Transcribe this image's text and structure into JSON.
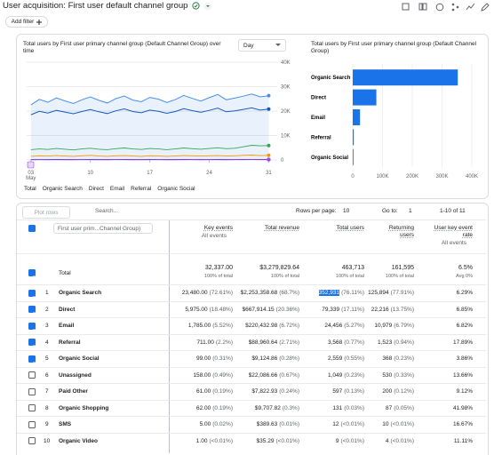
{
  "header": {
    "title": "User acquisition: First user default channel group",
    "add_filter": "Add filter"
  },
  "line_chart": {
    "type": "line",
    "title": "Total users by First user primary channel group (Default Channel Group) over time",
    "period": "Day",
    "x": [
      3,
      4,
      5,
      6,
      7,
      8,
      9,
      10,
      11,
      12,
      13,
      14,
      15,
      16,
      17,
      18,
      19,
      20,
      21,
      22,
      23,
      24,
      25,
      26,
      27,
      28,
      29,
      30,
      31
    ],
    "x_month": "May",
    "xlim": [
      2.5,
      32
    ],
    "xticks": [
      {
        "value": 3,
        "label": "03"
      },
      10,
      17,
      24,
      31
    ],
    "ylim": [
      0,
      40000
    ],
    "yticks": [
      0,
      {
        "value": 10000,
        "label": "10K"
      },
      {
        "value": 20000,
        "label": "20K"
      },
      {
        "value": 30000,
        "label": "30K"
      },
      {
        "value": 40000,
        "label": "40K"
      }
    ],
    "grid": true,
    "series": [
      {
        "name": "Total",
        "color": "#4a8fe7",
        "marker": "diamond",
        "values": [
          22500,
          24800,
          23600,
          25400,
          24200,
          23100,
          24600,
          25800,
          24400,
          23300,
          25100,
          26200,
          24500,
          23800,
          25600,
          24900,
          23500,
          24700,
          26400,
          25200,
          24100,
          25500,
          26800,
          24600,
          25300,
          26100,
          27000,
          25800,
          26300
        ]
      },
      {
        "name": "Organic Search",
        "color": "#1a5bb8",
        "marker": "circle",
        "values": [
          18500,
          19900,
          19200,
          20300,
          19600,
          18900,
          19800,
          20600,
          19700,
          19000,
          20100,
          20900,
          19800,
          19300,
          20400,
          19900,
          19100,
          19800,
          21000,
          20200,
          19500,
          20300,
          21200,
          19700,
          20100,
          20700,
          21300,
          20400,
          20800
        ]
      },
      {
        "name": "Direct",
        "color": "#34a853",
        "marker": "square",
        "values": [
          4200,
          4500,
          4300,
          4700,
          4400,
          4100,
          4500,
          4800,
          4400,
          4200,
          4600,
          4900,
          4500,
          4300,
          4700,
          4500,
          4200,
          4500,
          4900,
          4600,
          4400,
          4700,
          5000,
          4600,
          4800,
          5400,
          6000,
          5800,
          5900
        ]
      },
      {
        "name": "Email",
        "color": "#f29900",
        "marker": "diamond",
        "values": [
          1500,
          1700,
          1600,
          1800,
          1600,
          1500,
          1700,
          1900,
          1600,
          1500,
          1700,
          1800,
          1600,
          1500,
          1700,
          1600,
          1500,
          1600,
          1800,
          1700,
          1600,
          1700,
          1800,
          1600,
          1700,
          1900,
          2000,
          1800,
          1900
        ]
      },
      {
        "name": "Referral",
        "color": "#1a237e",
        "marker": "triangle-down",
        "values": [
          150,
          160,
          140,
          170,
          150,
          130,
          160,
          170,
          150,
          140,
          160,
          180,
          150,
          140,
          170,
          160,
          140,
          150,
          170,
          160,
          150,
          160,
          180,
          150,
          160,
          170,
          190,
          170,
          180
        ]
      },
      {
        "name": "Organic Social",
        "color": "#a142f4",
        "marker": "triangle-up",
        "values": [
          90,
          100,
          80,
          110,
          90,
          80,
          100,
          110,
          90,
          80,
          100,
          120,
          90,
          80,
          110,
          100,
          80,
          90,
          110,
          100,
          90,
          100,
          120,
          90,
          100,
          110,
          130,
          110,
          120
        ]
      }
    ]
  },
  "bar_chart": {
    "type": "bar",
    "title": "Total users by First user primary channel group (Default Channel Group)",
    "color": "#1a73e8",
    "categories": [
      "Organic Search",
      "Direct",
      "Email",
      "Referral",
      "Organic Social"
    ],
    "values": [
      352931,
      79339,
      24456,
      3568,
      2559
    ],
    "xlim": [
      0,
      400000
    ],
    "xticks": [
      0,
      {
        "value": 100000,
        "label": "100K"
      },
      {
        "value": 200000,
        "label": "200K"
      },
      {
        "value": 300000,
        "label": "300K"
      },
      {
        "value": 400000,
        "label": "400K"
      }
    ],
    "grid": true
  },
  "table": {
    "plot_rows": "Plot rows",
    "search": "Search...",
    "rows_per_page_label": "Rows per page:",
    "rows_per_page": "10",
    "go_to_label": "Go to:",
    "go_to": "1",
    "pagination": "1-10 of 11",
    "dimension": "First user prim...Channel Group)",
    "columns": [
      {
        "title": "Key events",
        "sub": "All events"
      },
      {
        "title": "Total revenue"
      },
      {
        "title": "Total users"
      },
      {
        "title": "Returning users"
      },
      {
        "title": "User key event rate",
        "sub": "All events"
      }
    ],
    "total": {
      "label": "Total",
      "cells": [
        [
          "32,337.00",
          "100% of total"
        ],
        [
          "$3,279,829.64",
          "100% of total"
        ],
        [
          "463,713",
          "100% of total"
        ],
        [
          "161,595",
          "100% of total"
        ],
        [
          "6.5%",
          "Avg 0%"
        ]
      ]
    },
    "rows": [
      {
        "index": "1",
        "name": "Organic Search",
        "checked": true,
        "cells": [
          [
            "23,480.00",
            "(72.61%)"
          ],
          [
            "$2,253,358.68",
            "(68.7%)"
          ],
          [
            "352,931",
            "(76.11%)"
          ],
          [
            "125,894",
            "(77.91%)"
          ],
          [
            "6.29%"
          ]
        ]
      },
      {
        "index": "2",
        "name": "Direct",
        "checked": true,
        "cells": [
          [
            "5,975.00",
            "(18.48%)"
          ],
          [
            "$667,914.15",
            "(20.36%)"
          ],
          [
            "79,339",
            "(17.11%)"
          ],
          [
            "22,216",
            "(13.75%)"
          ],
          [
            "6.85%"
          ]
        ]
      },
      {
        "index": "3",
        "name": "Email",
        "checked": true,
        "cells": [
          [
            "1,785.00",
            "(5.52%)"
          ],
          [
            "$220,432.98",
            "(6.72%)"
          ],
          [
            "24,456",
            "(5.27%)"
          ],
          [
            "10,979",
            "(6.79%)"
          ],
          [
            "6.82%"
          ]
        ]
      },
      {
        "index": "4",
        "name": "Referral",
        "checked": true,
        "cells": [
          [
            "711.00",
            "(2.2%)"
          ],
          [
            "$88,960.64",
            "(2.71%)"
          ],
          [
            "3,568",
            "(0.77%)"
          ],
          [
            "1,523",
            "(0.94%)"
          ],
          [
            "17.89%"
          ]
        ]
      },
      {
        "index": "5",
        "name": "Organic Social",
        "checked": true,
        "cells": [
          [
            "99.00",
            "(0.31%)"
          ],
          [
            "$9,124.86",
            "(0.28%)"
          ],
          [
            "2,559",
            "(0.55%)"
          ],
          [
            "368",
            "(0.23%)"
          ],
          [
            "3.86%"
          ]
        ]
      },
      {
        "index": "6",
        "name": "Unassigned",
        "checked": false,
        "cells": [
          [
            "158.00",
            "(0.49%)"
          ],
          [
            "$22,086.66",
            "(0.67%)"
          ],
          [
            "1,049",
            "(0.23%)"
          ],
          [
            "530",
            "(0.33%)"
          ],
          [
            "13.66%"
          ]
        ]
      },
      {
        "index": "7",
        "name": "Paid Other",
        "checked": false,
        "cells": [
          [
            "61.00",
            "(0.19%)"
          ],
          [
            "$7,822.93",
            "(0.24%)"
          ],
          [
            "597",
            "(0.13%)"
          ],
          [
            "200",
            "(0.12%)"
          ],
          [
            "9.12%"
          ]
        ]
      },
      {
        "index": "8",
        "name": "Organic Shopping",
        "checked": false,
        "cells": [
          [
            "62.00",
            "(0.19%)"
          ],
          [
            "$9,707.82",
            "(0.3%)"
          ],
          [
            "131",
            "(0.03%)"
          ],
          [
            "87",
            "(0.05%)"
          ],
          [
            "41.98%"
          ]
        ]
      },
      {
        "index": "9",
        "name": "SMS",
        "checked": false,
        "cells": [
          [
            "5.00",
            "(0.02%)"
          ],
          [
            "$389.63",
            "(0.01%)"
          ],
          [
            "12",
            "(<0.01%)"
          ],
          [
            "10",
            "(<0.01%)"
          ],
          [
            "16.67%"
          ]
        ]
      },
      {
        "index": "10",
        "name": "Organic Video",
        "checked": false,
        "cells": [
          [
            "1.00",
            "(<0.01%)"
          ],
          [
            "$35.29",
            "(<0.01%)"
          ],
          [
            "9",
            "(<0.01%)"
          ],
          [
            "4",
            "(<0.01%)"
          ],
          [
            "11.11%"
          ]
        ]
      }
    ]
  }
}
